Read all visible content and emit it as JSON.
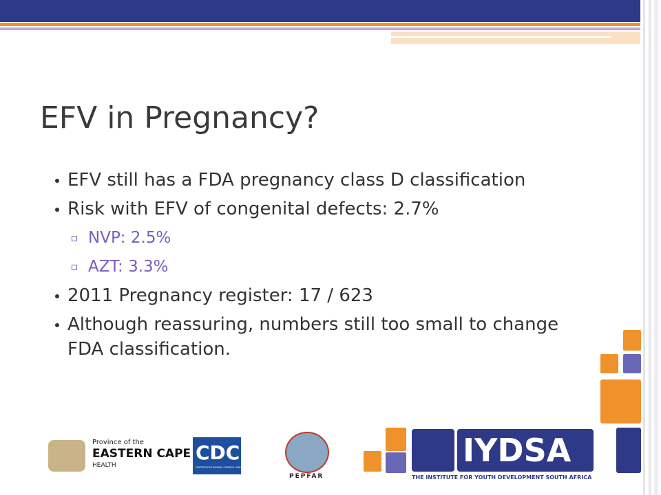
{
  "slide": {
    "title": "EFV in Pregnancy?",
    "items": [
      {
        "text": "EFV still has a FDA pregnancy class D classification",
        "level": 1
      },
      {
        "text": "Risk with EFV of congenital defects: 2.7%",
        "level": 1
      },
      {
        "text": "NVP: 2.5%",
        "level": 2
      },
      {
        "text": "AZT: 3.3%",
        "level": 2
      },
      {
        "text": "2011 Pregnancy register: 17 / 623",
        "level": 1
      },
      {
        "text": "Although reassuring, numbers still too small to change FDA classification.",
        "level": 1
      }
    ],
    "logos": {
      "eastern_cape": {
        "line1": "Province of the",
        "line2": "EASTERN CAPE",
        "line3": "HEALTH"
      },
      "cdc": {
        "name": "CDC",
        "subtitle": "CENTERS FOR DISEASE CONTROL AND PREVENTION"
      },
      "pepfar": {
        "name": "PEPFAR"
      },
      "iydsa": {
        "name": "IYDSA",
        "subtitle": "THE INSTITUTE FOR YOUTH DEVELOPMENT SOUTH AFRICA"
      }
    }
  }
}
